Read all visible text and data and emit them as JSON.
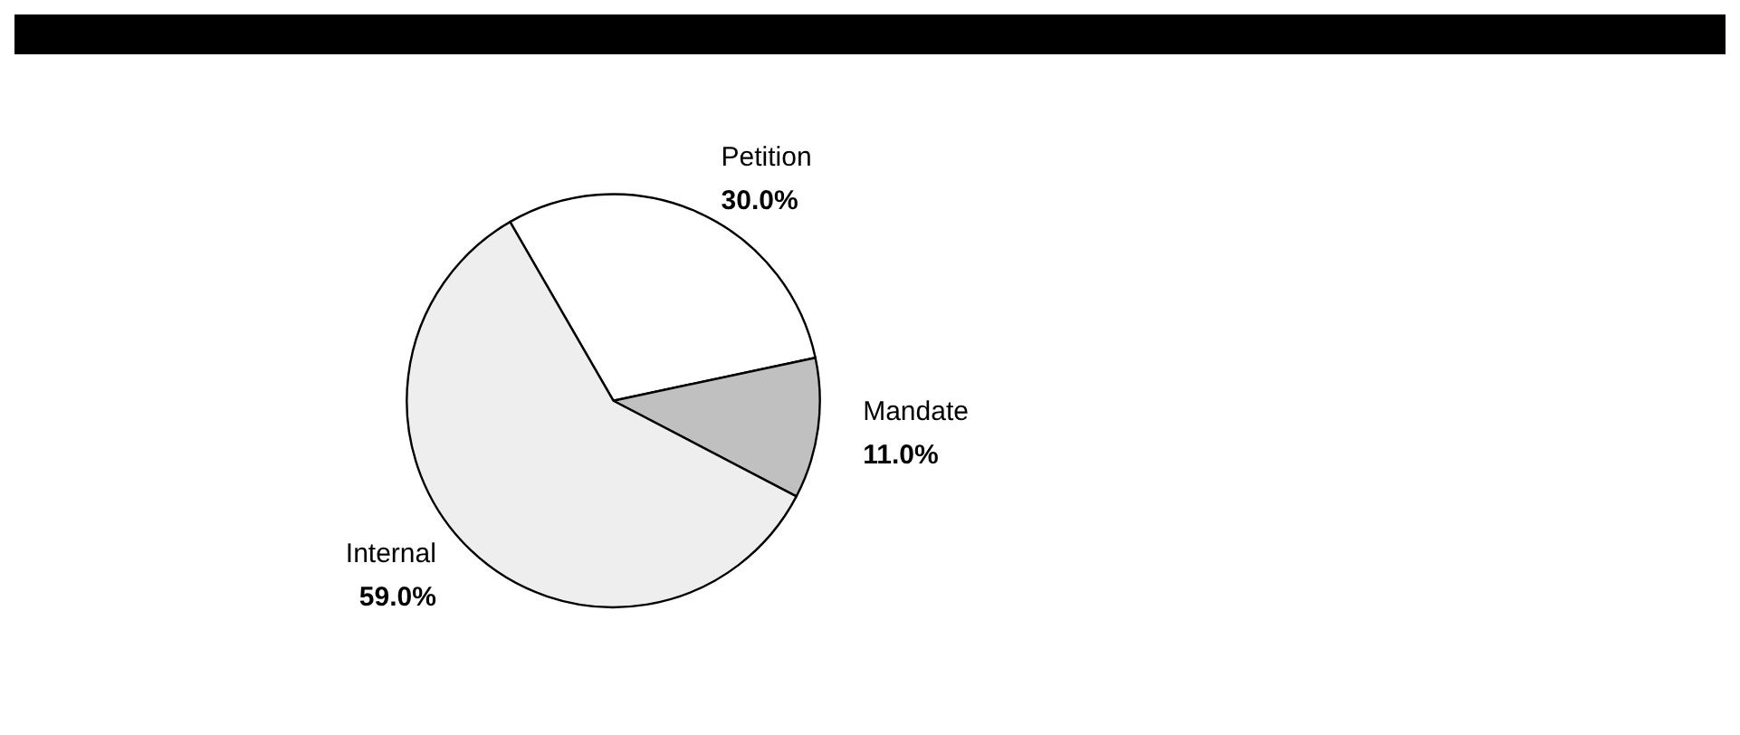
{
  "chart_data": {
    "type": "pie",
    "categories": [
      "Petition",
      "Mandate",
      "Internal"
    ],
    "values": [
      30,
      11,
      59
    ],
    "colors": [
      "#ffffff",
      "#c0c0c0",
      "#eeeeee"
    ],
    "value_labels": [
      "30.0%",
      "11.0%",
      "59.0%"
    ],
    "legend": false
  }
}
